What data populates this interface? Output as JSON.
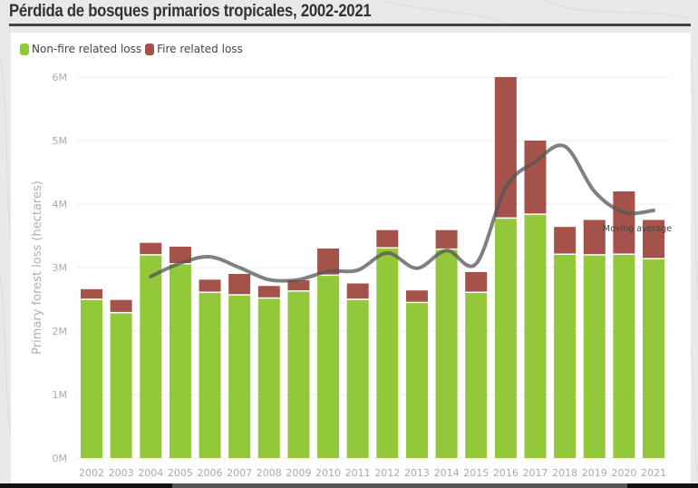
{
  "page_title": "Pérdida de bosques primarios tropicales, 2002-2021",
  "colors": {
    "non_fire": "#93c83a",
    "fire": "#a4524a",
    "moving_average": "#555555",
    "grid": "#eeeeee",
    "tick_text": "#aaaaaa"
  },
  "chart_data": {
    "type": "bar",
    "stacked": true,
    "title": "Pérdida de bosques primarios tropicales, 2002-2021",
    "xlabel": "",
    "ylabel": "Primary forest loss (hectares)",
    "ylim": [
      0,
      6000000
    ],
    "yticks": [
      0,
      1000000,
      2000000,
      3000000,
      4000000,
      5000000,
      6000000
    ],
    "ytick_labels": [
      "0M",
      "1M",
      "2M",
      "3M",
      "4M",
      "5M",
      "6M"
    ],
    "grid": true,
    "legend": {
      "position": "top-left",
      "entries": [
        "Non-fire related loss",
        "Fire related loss"
      ]
    },
    "categories": [
      "2002",
      "2003",
      "2004",
      "2005",
      "2006",
      "2007",
      "2008",
      "2009",
      "2010",
      "2011",
      "2012",
      "2013",
      "2014",
      "2015",
      "2016",
      "2017",
      "2018",
      "2019",
      "2020",
      "2021"
    ],
    "series": [
      {
        "name": "Non-fire related loss",
        "values": [
          2490000,
          2280000,
          3190000,
          3050000,
          2600000,
          2560000,
          2510000,
          2620000,
          2870000,
          2490000,
          3300000,
          2440000,
          3280000,
          2600000,
          3770000,
          3830000,
          3200000,
          3190000,
          3200000,
          3130000
        ]
      },
      {
        "name": "Fire related loss",
        "values": [
          170000,
          210000,
          200000,
          280000,
          210000,
          340000,
          200000,
          180000,
          430000,
          260000,
          290000,
          200000,
          310000,
          330000,
          2230000,
          1170000,
          440000,
          560000,
          1000000,
          620000
        ]
      }
    ],
    "moving_average": {
      "name": "Moving average",
      "categories": [
        "2004",
        "2005",
        "2006",
        "2007",
        "2008",
        "2009",
        "2010",
        "2011",
        "2012",
        "2013",
        "2014",
        "2015",
        "2016",
        "2017",
        "2018",
        "2019",
        "2020",
        "2021"
      ],
      "values": [
        2860000,
        3070000,
        3170000,
        3000000,
        2810000,
        2810000,
        2940000,
        2960000,
        3230000,
        2990000,
        3270000,
        3060000,
        4260000,
        4670000,
        4910000,
        4200000,
        3870000,
        3900000
      ],
      "label": "Moving average"
    }
  }
}
